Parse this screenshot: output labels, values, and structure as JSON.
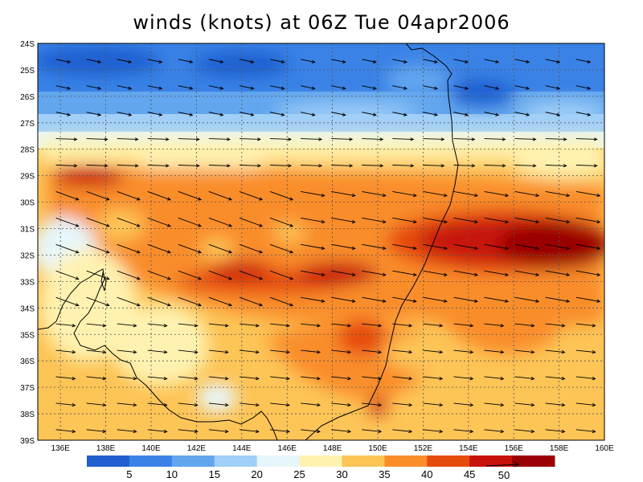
{
  "title": "winds (knots) at 06Z Tue 04apr2006",
  "map": {
    "lat_labels": [
      "24S",
      "25S",
      "26S",
      "27S",
      "28S",
      "29S",
      "30S",
      "31S",
      "32S",
      "33S",
      "34S",
      "35S",
      "36S",
      "37S",
      "38S",
      "39S"
    ],
    "lon_labels": [
      "136E",
      "138E",
      "140E",
      "142E",
      "144E",
      "146E",
      "148E",
      "150E",
      "152E",
      "154E",
      "156E",
      "158E",
      "160E"
    ],
    "lat_range": [
      -39,
      -24
    ],
    "lon_range": [
      135,
      160
    ],
    "gridlines": "dotted"
  },
  "colorbar": {
    "colors": [
      "#1f5fd0",
      "#3a82e6",
      "#62a6ee",
      "#a0cff7",
      "#e6f6fb",
      "#fff2b0",
      "#fdc456",
      "#f98d2a",
      "#e64b0e",
      "#c7130b",
      "#9b0006"
    ],
    "labels": [
      "5",
      "10",
      "15",
      "20",
      "25",
      "30",
      "35",
      "40",
      "45"
    ],
    "reference_vector_label": "50"
  }
}
